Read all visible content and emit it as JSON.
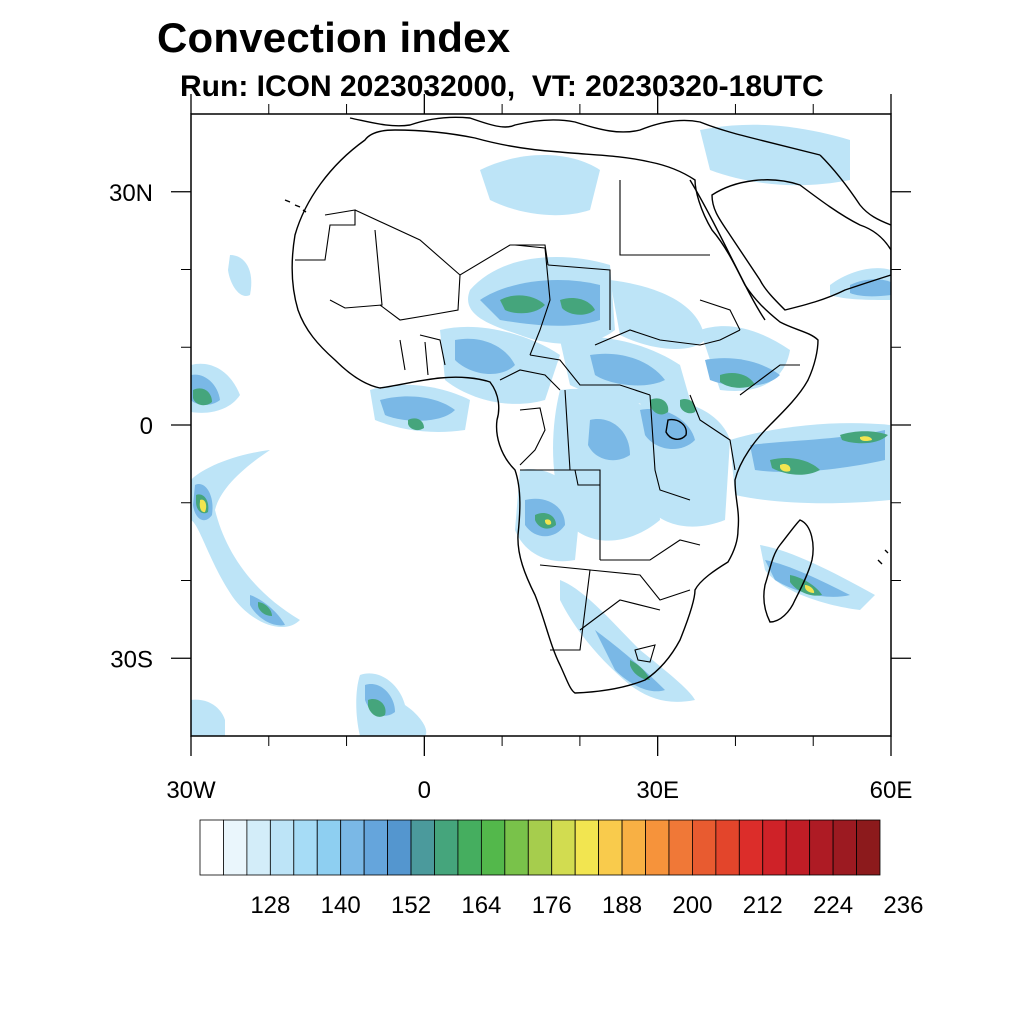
{
  "title": "Convection index",
  "subtitle": "Run: ICON 2023032000,  VT: 20230320-18UTC",
  "map": {
    "projection": "cylindrical-equidistant",
    "lon_range": [
      -30,
      60
    ],
    "lat_range": [
      -40,
      40
    ],
    "x_ticks": [
      {
        "lon": -30,
        "label": "30W"
      },
      {
        "lon": 0,
        "label": "0"
      },
      {
        "lon": 30,
        "label": "30E"
      },
      {
        "lon": 60,
        "label": "60E"
      }
    ],
    "y_ticks": [
      {
        "lat": 30,
        "label": "30N"
      },
      {
        "lat": 0,
        "label": "0"
      },
      {
        "lat": -30,
        "label": "30S"
      }
    ],
    "minor_x_ticks": [
      -20,
      -10,
      10,
      20,
      40,
      50
    ],
    "minor_y_ticks": [
      20,
      10,
      -10,
      -20
    ]
  },
  "colorbar": {
    "colors": [
      "#ffffff",
      "#eaf6fc",
      "#d3edf9",
      "#bde4f7",
      "#a6dcf6",
      "#8ecff1",
      "#7ab8e6",
      "#65a5dc",
      "#5496cf",
      "#4b9a9c",
      "#45a57c",
      "#45ae5f",
      "#53b84b",
      "#79c24a",
      "#a6cd4d",
      "#d2dc50",
      "#f2e550",
      "#f9cb4c",
      "#f8b044",
      "#f6933b",
      "#f07837",
      "#e85b30",
      "#e3452b",
      "#dc2d2a",
      "#cf2228",
      "#c01d26",
      "#ae1b24",
      "#9c1a21",
      "#8c1a1c"
    ],
    "labels": [
      "128",
      "140",
      "152",
      "164",
      "176",
      "188",
      "200",
      "212",
      "224",
      "236"
    ],
    "label_every": 3,
    "label_first_boundary": 3
  }
}
